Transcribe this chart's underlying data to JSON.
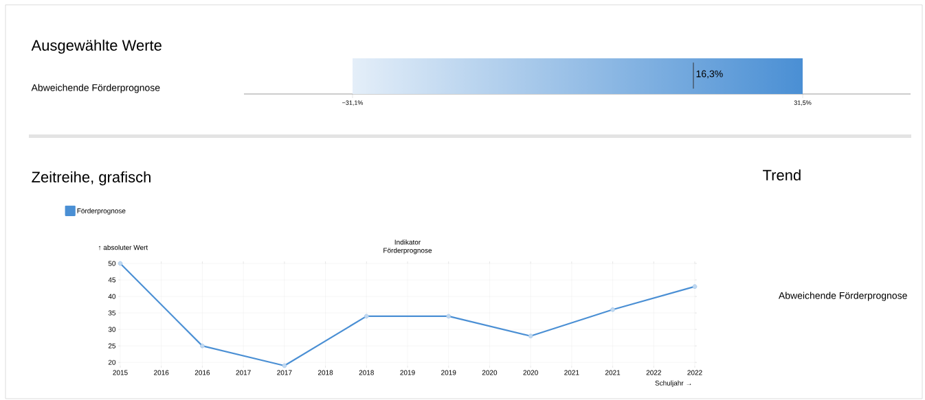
{
  "chart_data": [
    {
      "type": "bar",
      "title": "Ausgewählte Werte",
      "orientation": "horizontal",
      "categories": [
        "Abweichende Förderprognose"
      ],
      "values": [
        62.6
      ],
      "base": [
        -31.1
      ],
      "color": "#4a8fd4",
      "xlim": [
        -46.2,
        46.5
      ],
      "xticks": [
        {
          "value": -31.1,
          "label": "−31,1%"
        },
        {
          "value": 31.5,
          "label": "31,5%"
        }
      ],
      "ref_lines": [
        {
          "axis": "x",
          "value": 16.3,
          "label": "16,3%",
          "color": "#333333"
        }
      ]
    },
    {
      "type": "line",
      "title": "Zeitreihe, grafisch",
      "subtitle": "Indikator Förderprognose",
      "xlabel": "Schuljahr →",
      "ylabel": "↑ absoluter Wert",
      "x": [
        2015,
        2016,
        2017,
        2018,
        2019,
        2020,
        2021,
        2022
      ],
      "series": [
        {
          "name": "Förderprognose",
          "color": "#4a8fd4",
          "values": [
            50,
            25,
            19,
            34,
            34,
            28,
            36,
            43
          ]
        }
      ],
      "xlim": [
        2015,
        2022
      ],
      "ylim": [
        19,
        50
      ],
      "xticks": [
        {
          "value": 2015,
          "label": "2015"
        },
        {
          "value": 2015.5,
          "label": "2016"
        },
        {
          "value": 2016,
          "label": "2016"
        },
        {
          "value": 2016.5,
          "label": "2017"
        },
        {
          "value": 2017,
          "label": "2017"
        },
        {
          "value": 2017.5,
          "label": "2018"
        },
        {
          "value": 2018,
          "label": "2018"
        },
        {
          "value": 2018.5,
          "label": "2019"
        },
        {
          "value": 2019,
          "label": "2019"
        },
        {
          "value": 2019.5,
          "label": "2020"
        },
        {
          "value": 2020,
          "label": "2020"
        },
        {
          "value": 2020.5,
          "label": "2021"
        },
        {
          "value": 2021,
          "label": "2021"
        },
        {
          "value": 2021.5,
          "label": "2022"
        },
        {
          "value": 2022,
          "label": "2022"
        }
      ],
      "yticks": [
        20,
        25,
        30,
        35,
        40,
        45,
        50
      ],
      "grid": true,
      "legend": "top left",
      "marker": "circle",
      "line_style": "solid"
    },
    {
      "type": "other",
      "title": "Trend",
      "annotations": [
        "Abweichende Förderprognose"
      ]
    }
  ]
}
